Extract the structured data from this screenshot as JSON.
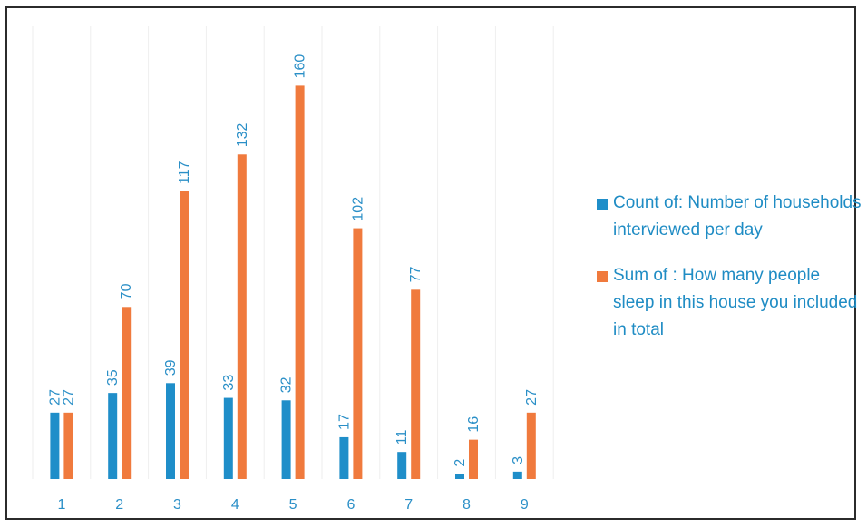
{
  "chart_data": {
    "type": "bar",
    "categories": [
      "1",
      "2",
      "3",
      "4",
      "5",
      "6",
      "7",
      "8",
      "9"
    ],
    "series": [
      {
        "name": "Count of: Number of households interviewed per day",
        "values": [
          27,
          35,
          39,
          33,
          32,
          17,
          11,
          2,
          3
        ],
        "color": "#1f8ec9"
      },
      {
        "name": "Sum of : How many people sleep in this house you included in total",
        "values": [
          27,
          70,
          117,
          132,
          160,
          102,
          77,
          16,
          27
        ],
        "color": "#f07a3d"
      }
    ],
    "ylim": [
      0,
      175
    ],
    "grid": "vertical",
    "legend_position": "right",
    "data_labels": true
  }
}
